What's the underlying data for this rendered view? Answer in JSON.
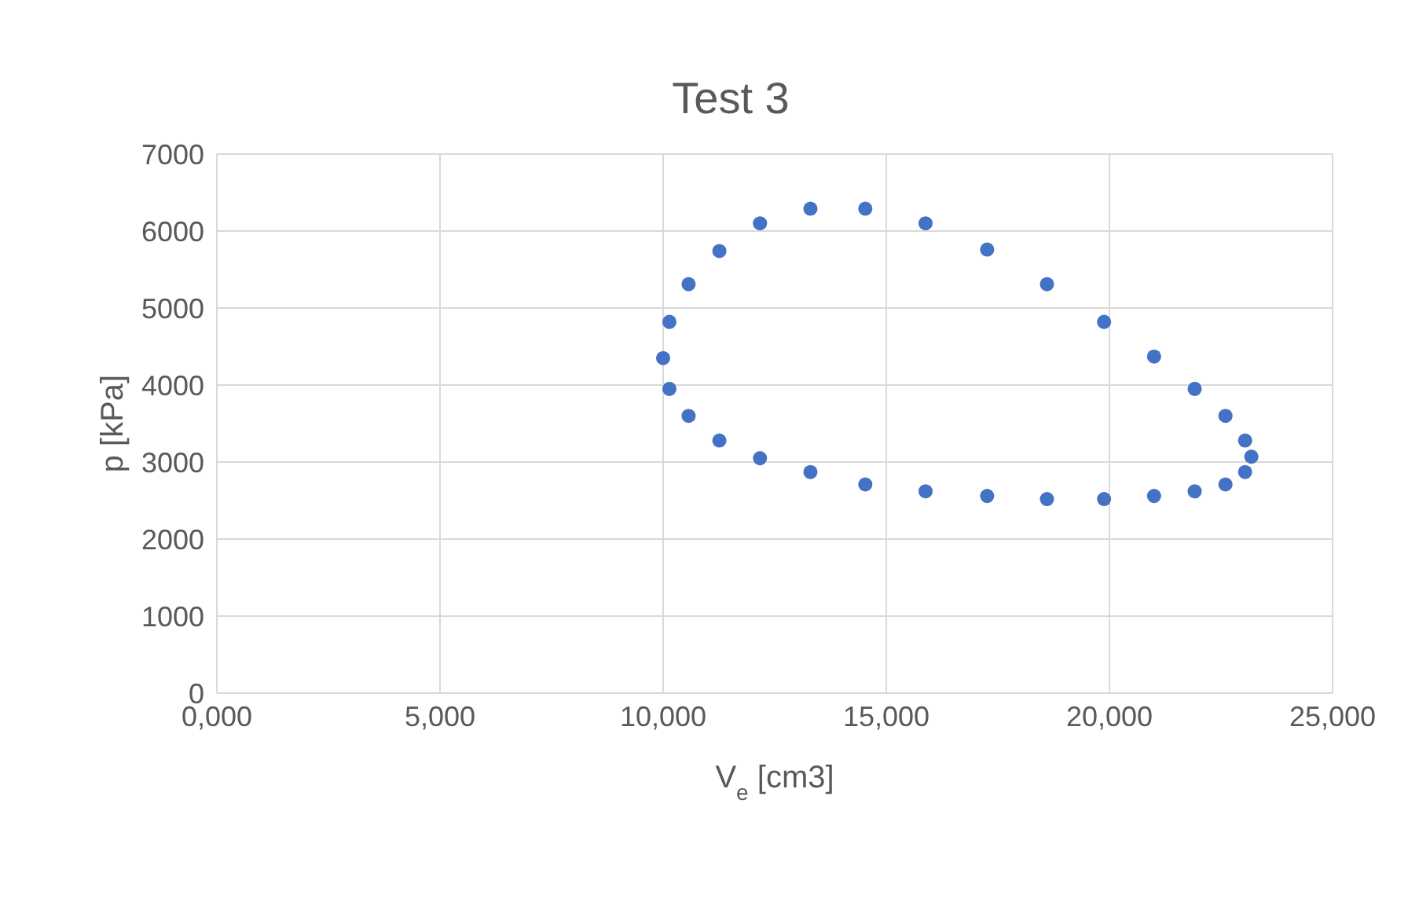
{
  "chart_data": {
    "type": "scatter",
    "title": "Test 3",
    "xlabel": "V$_{e}$ [cm3]",
    "ylabel": "p [kPa]",
    "x": [
      10000,
      10140,
      10570,
      11260,
      12170,
      13300,
      14530,
      15880,
      17260,
      18600,
      19880,
      21000,
      21910,
      22600,
      23040,
      23180,
      23040,
      22600,
      21910,
      21000,
      19880,
      18600,
      17260,
      15880,
      14530,
      13300,
      12170,
      11260,
      10570,
      10140
    ],
    "series": [
      {
        "color": "#4472c4",
        "values": [
          4350,
          4820,
          5310,
          5740,
          6100,
          6290,
          6290,
          6100,
          5760,
          5310,
          4820,
          4370,
          3950,
          3600,
          3280,
          3070,
          2870,
          2710,
          2620,
          2560,
          2520,
          2520,
          2560,
          2620,
          2710,
          2870,
          3050,
          3280,
          3600,
          3950
        ]
      }
    ],
    "xlim": [
      0,
      25000
    ],
    "xticks": [
      {
        "value": 0,
        "label": "0,000"
      },
      {
        "value": 5000,
        "label": "5,000"
      },
      {
        "value": 10000,
        "label": "10,000"
      },
      {
        "value": 15000,
        "label": "15,000"
      },
      {
        "value": 20000,
        "label": "20,000"
      },
      {
        "value": 25000,
        "label": "25,000"
      }
    ],
    "ylim": [
      0,
      7000
    ],
    "yticks": [
      0,
      1000,
      2000,
      3000,
      4000,
      5000,
      6000,
      7000
    ],
    "grid": true,
    "marker": "circle"
  }
}
